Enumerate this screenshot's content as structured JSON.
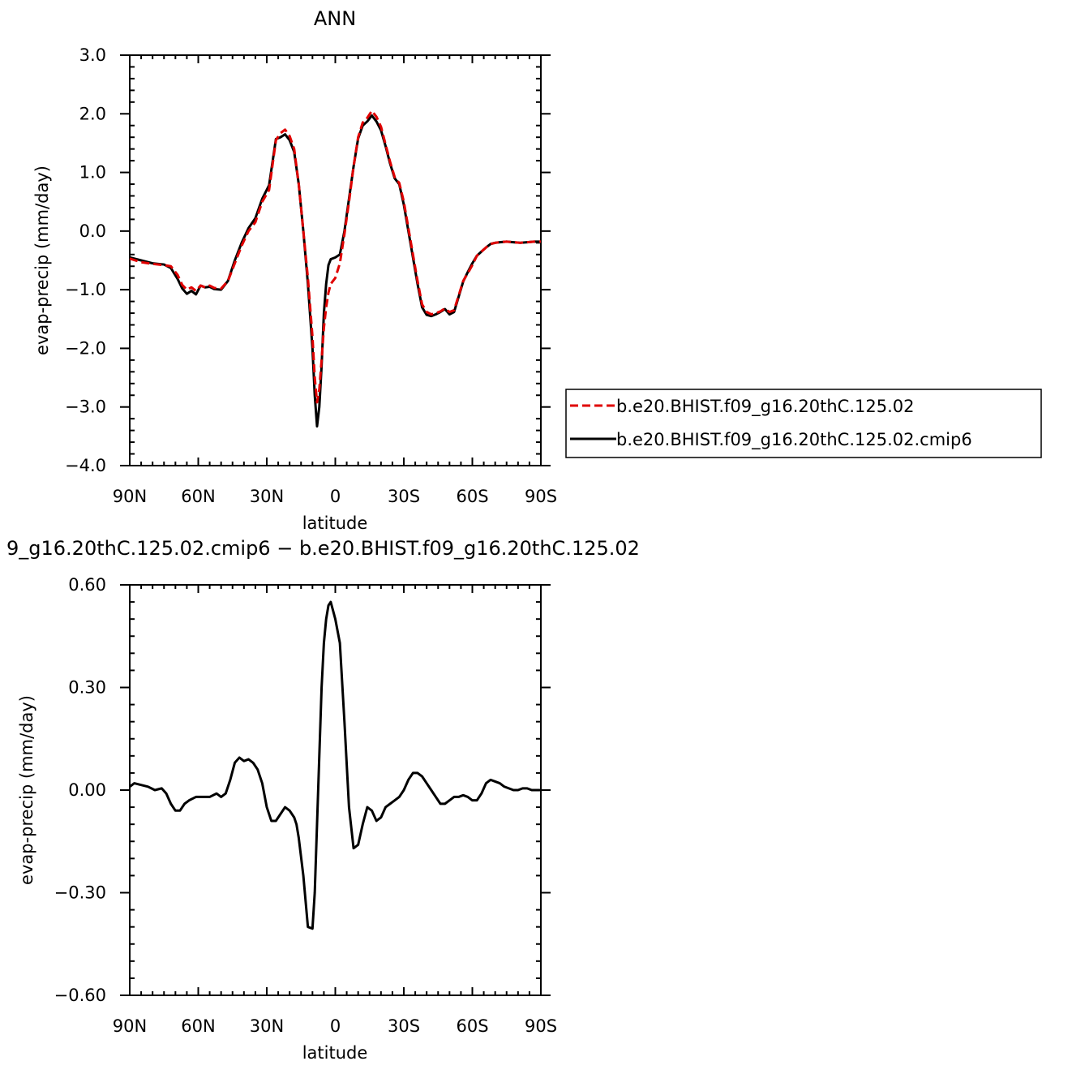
{
  "charts": [
    {
      "title": "ANN",
      "xlabel": "latitude",
      "ylabel": "evap-precip (mm/day)",
      "xticks": [
        "90N",
        "60N",
        "30N",
        "0",
        "30S",
        "60S",
        "90S"
      ],
      "yticks": [
        "3.0",
        "2.0",
        "1.0",
        "0.0",
        "−1.0",
        "−2.0",
        "−3.0",
        "−4.0"
      ],
      "legend": [
        "b.e20.BHIST.f09_g16.20thC.125.02",
        "b.e20.BHIST.f09_g16.20thC.125.02.cmip6"
      ]
    },
    {
      "title": "9_g16.20thC.125.02.cmip6 − b.e20.BHIST.f09_g16.20thC.125.02",
      "xlabel": "latitude",
      "ylabel": "evap-precip (mm/day)",
      "xticks": [
        "90N",
        "60N",
        "30N",
        "0",
        "30S",
        "60S",
        "90S"
      ],
      "yticks": [
        "0.60",
        "0.30",
        "0.00",
        "−0.30",
        "−0.60"
      ]
    }
  ],
  "colors": {
    "series_red": "#e00000",
    "series_black": "#000000"
  },
  "chart_data": [
    {
      "type": "line",
      "title": "ANN",
      "xlabel": "latitude",
      "ylabel": "evap-precip (mm/day)",
      "xlim": [
        90,
        -90
      ],
      "ylim": [
        -4.0,
        3.0
      ],
      "grid": false,
      "legend_position": "right",
      "series": [
        {
          "name": "b.e20.BHIST.f09_g16.20thC.125.02",
          "color": "#e00000",
          "dash": "dashed",
          "x": [
            90,
            85,
            80,
            75,
            72,
            69,
            67,
            65,
            63,
            61,
            59,
            57,
            55,
            53,
            50,
            47,
            44,
            41,
            38,
            35,
            32,
            29,
            26,
            24,
            22,
            20,
            18,
            16,
            14,
            12,
            10,
            9,
            8,
            7,
            6,
            5,
            4,
            3,
            2,
            0,
            -2,
            -4,
            -6,
            -8,
            -10,
            -12,
            -14,
            -16,
            -18,
            -20,
            -22,
            -24,
            -26,
            -28,
            -30,
            -32,
            -34,
            -36,
            -38,
            -40,
            -42,
            -44,
            -46,
            -48,
            -50,
            -52,
            -54,
            -56,
            -58,
            -60,
            -62,
            -64,
            -66,
            -68,
            -70,
            -72,
            -75,
            -78,
            -81,
            -84,
            -87,
            -90
          ],
          "y": [
            -0.47,
            -0.53,
            -0.56,
            -0.58,
            -0.6,
            -0.75,
            -0.92,
            -1.0,
            -0.96,
            -1.02,
            -0.93,
            -0.96,
            -0.93,
            -0.97,
            -0.98,
            -0.85,
            -0.55,
            -0.25,
            0.0,
            0.15,
            0.5,
            0.7,
            1.55,
            1.67,
            1.73,
            1.62,
            1.4,
            0.8,
            0.0,
            -0.8,
            -1.8,
            -2.5,
            -2.92,
            -2.7,
            -2.2,
            -1.65,
            -1.3,
            -1.05,
            -0.9,
            -0.8,
            -0.55,
            -0.05,
            0.5,
            1.1,
            1.6,
            1.85,
            1.93,
            2.05,
            1.95,
            1.78,
            1.48,
            1.18,
            0.92,
            0.82,
            0.5,
            0.05,
            -0.4,
            -0.85,
            -1.25,
            -1.38,
            -1.42,
            -1.4,
            -1.37,
            -1.32,
            -1.38,
            -1.35,
            -1.1,
            -0.85,
            -0.72,
            -0.58,
            -0.42,
            -0.35,
            -0.28,
            -0.22,
            -0.2,
            -0.19,
            -0.18,
            -0.19,
            -0.2,
            -0.19,
            -0.18,
            -0.18
          ]
        },
        {
          "name": "b.e20.BHIST.f09_g16.20thC.125.02.cmip6",
          "color": "#000000",
          "dash": "solid",
          "x": [
            90,
            85,
            80,
            75,
            72,
            69,
            67,
            65,
            63,
            61,
            59,
            57,
            55,
            53,
            50,
            47,
            44,
            41,
            38,
            35,
            32,
            29,
            26,
            24,
            22,
            20,
            18,
            16,
            14,
            12,
            10,
            9,
            8,
            7,
            6,
            5,
            4,
            3,
            2,
            0,
            -2,
            -4,
            -6,
            -8,
            -10,
            -12,
            -14,
            -16,
            -18,
            -20,
            -22,
            -24,
            -26,
            -28,
            -30,
            -32,
            -34,
            -36,
            -38,
            -40,
            -42,
            -44,
            -46,
            -48,
            -50,
            -52,
            -54,
            -56,
            -58,
            -60,
            -62,
            -64,
            -66,
            -68,
            -70,
            -72,
            -75,
            -78,
            -81,
            -84,
            -87,
            -90
          ],
          "y": [
            -0.45,
            -0.5,
            -0.55,
            -0.57,
            -0.63,
            -0.82,
            -0.98,
            -1.07,
            -1.02,
            -1.08,
            -0.93,
            -0.96,
            -0.95,
            -0.99,
            -1.0,
            -0.85,
            -0.5,
            -0.2,
            0.05,
            0.22,
            0.55,
            0.78,
            1.57,
            1.6,
            1.65,
            1.55,
            1.35,
            0.8,
            0.0,
            -0.9,
            -2.0,
            -2.8,
            -3.33,
            -3.0,
            -2.3,
            -1.4,
            -0.9,
            -0.58,
            -0.48,
            -0.45,
            -0.4,
            -0.0,
            0.55,
            1.1,
            1.58,
            1.8,
            1.87,
            1.97,
            1.87,
            1.72,
            1.45,
            1.15,
            0.9,
            0.8,
            0.45,
            0.0,
            -0.45,
            -0.9,
            -1.3,
            -1.43,
            -1.45,
            -1.42,
            -1.38,
            -1.33,
            -1.42,
            -1.38,
            -1.12,
            -0.86,
            -0.7,
            -0.55,
            -0.42,
            -0.35,
            -0.28,
            -0.22,
            -0.2,
            -0.19,
            -0.18,
            -0.19,
            -0.2,
            -0.19,
            -0.18,
            -0.18
          ]
        }
      ]
    },
    {
      "type": "line",
      "title": "9_g16.20thC.125.02.cmip6 − b.e20.BHIST.f09_g16.20thC.125.02",
      "xlabel": "latitude",
      "ylabel": "evap-precip (mm/day)",
      "xlim": [
        90,
        -90
      ],
      "ylim": [
        -0.6,
        0.6
      ],
      "grid": false,
      "series": [
        {
          "color": "#000000",
          "dash": "solid",
          "x": [
            90,
            88,
            85,
            82,
            79,
            76,
            74,
            72,
            70,
            68,
            66,
            64,
            61,
            58,
            55,
            52,
            50,
            48,
            46,
            44,
            42,
            40,
            38,
            36,
            34,
            32,
            30,
            28,
            26,
            24,
            22,
            20,
            18,
            17,
            16,
            14,
            12,
            10,
            9,
            8,
            7,
            6,
            5,
            4,
            3,
            2,
            0,
            -2,
            -4,
            -6,
            -8,
            -10,
            -12,
            -14,
            -16,
            -18,
            -20,
            -22,
            -24,
            -26,
            -28,
            -30,
            -32,
            -34,
            -36,
            -38,
            -40,
            -42,
            -44,
            -46,
            -48,
            -50,
            -52,
            -54,
            -56,
            -58,
            -60,
            -62,
            -64,
            -66,
            -68,
            -70,
            -72,
            -74,
            -76,
            -78,
            -80,
            -82,
            -84,
            -86,
            -88,
            -90
          ],
          "y": [
            0.01,
            0.02,
            0.015,
            0.01,
            0.0,
            0.005,
            -0.01,
            -0.04,
            -0.06,
            -0.06,
            -0.04,
            -0.03,
            -0.02,
            -0.02,
            -0.02,
            -0.01,
            -0.02,
            -0.01,
            0.03,
            0.08,
            0.095,
            0.085,
            0.09,
            0.08,
            0.06,
            0.02,
            -0.05,
            -0.09,
            -0.09,
            -0.07,
            -0.05,
            -0.06,
            -0.08,
            -0.1,
            -0.14,
            -0.25,
            -0.4,
            -0.405,
            -0.3,
            -0.1,
            0.1,
            0.3,
            0.43,
            0.5,
            0.54,
            0.55,
            0.5,
            0.43,
            0.2,
            -0.05,
            -0.17,
            -0.16,
            -0.1,
            -0.05,
            -0.06,
            -0.09,
            -0.08,
            -0.05,
            -0.04,
            -0.03,
            -0.02,
            0.0,
            0.03,
            0.05,
            0.05,
            0.04,
            0.02,
            0.0,
            -0.02,
            -0.04,
            -0.04,
            -0.03,
            -0.02,
            -0.02,
            -0.015,
            -0.02,
            -0.03,
            -0.03,
            -0.01,
            0.02,
            0.03,
            0.025,
            0.02,
            0.01,
            0.005,
            0.0,
            0.0,
            0.005,
            0.005,
            0.0,
            0.0,
            0.0
          ]
        }
      ]
    }
  ]
}
